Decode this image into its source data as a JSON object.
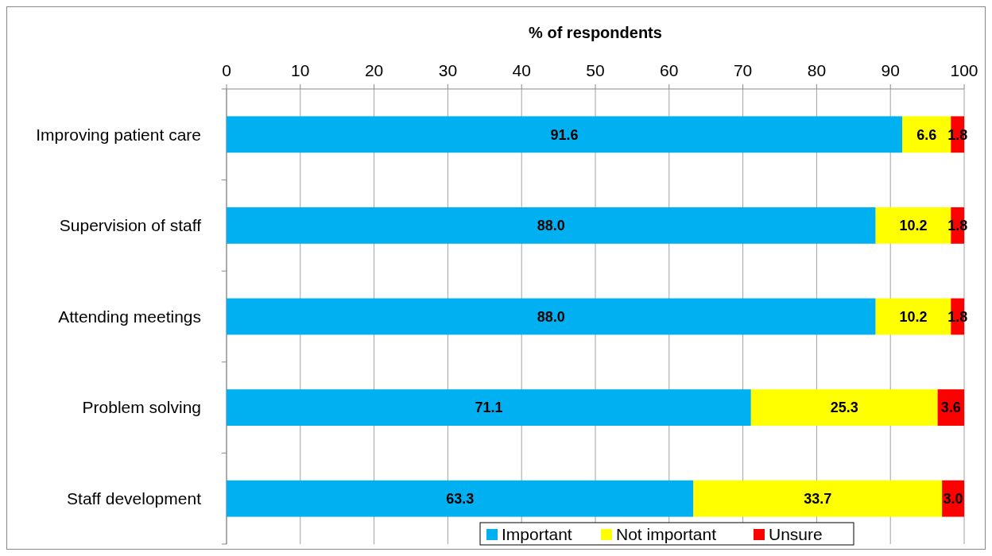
{
  "chart_data": {
    "type": "bar",
    "orientation": "horizontal",
    "stacked": true,
    "xlabel": "% of respondents",
    "categories": [
      "Improving patient care",
      "Supervision of staff",
      "Attending meetings",
      "Problem solving",
      "Staff development"
    ],
    "series": [
      {
        "name": "Important",
        "color": "#00b0f0",
        "values": [
          91.6,
          88.0,
          88.0,
          71.1,
          63.3
        ],
        "value_labels": [
          "91.6",
          "88.0",
          "88.0",
          "71.1",
          "63.3"
        ]
      },
      {
        "name": "Not important",
        "color": "#ffff00",
        "values": [
          6.6,
          10.2,
          10.2,
          25.3,
          33.7
        ],
        "value_labels": [
          "6.6",
          "10.2",
          "10.2",
          "25.3",
          "33.7"
        ]
      },
      {
        "name": "Unsure",
        "color": "#ff0000",
        "values": [
          1.8,
          1.8,
          1.8,
          3.6,
          3.0
        ],
        "value_labels": [
          "1.8",
          "1.8",
          "1.8",
          "3.6",
          "3.0"
        ]
      }
    ],
    "xlim": [
      0,
      100
    ],
    "xticks": [
      0,
      10,
      20,
      30,
      40,
      50,
      60,
      70,
      80,
      90,
      100
    ],
    "grid": "x",
    "legend": "bottom"
  }
}
